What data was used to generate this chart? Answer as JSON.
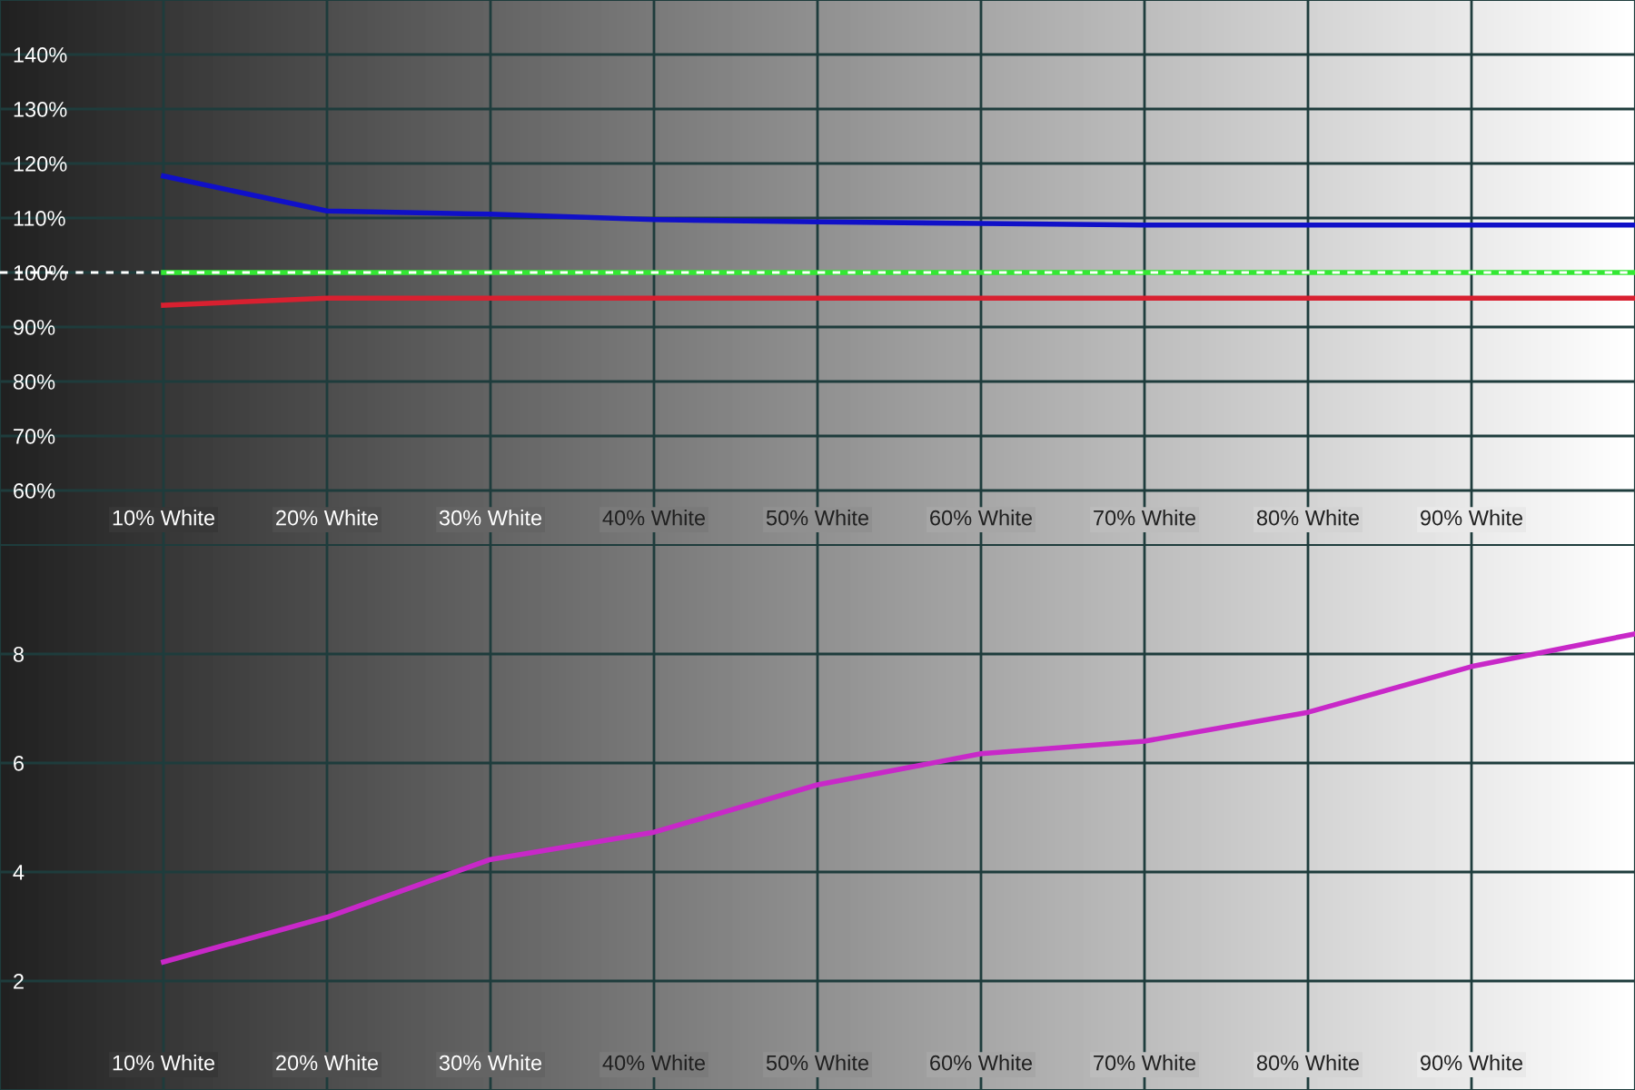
{
  "chart_data": [
    {
      "type": "line",
      "x": [
        10,
        20,
        30,
        40,
        50,
        60,
        70,
        80,
        90,
        100
      ],
      "series": [
        {
          "color": "#1010c8",
          "values": [
            117.7,
            111.3,
            110.7,
            109.7,
            109.3,
            109,
            108.7,
            108.7,
            108.7,
            108.7
          ]
        },
        {
          "color": "#33e833",
          "values": [
            100,
            100,
            100,
            100,
            100,
            100,
            100,
            100,
            100,
            100
          ]
        },
        {
          "color": "#d82030",
          "values": [
            94,
            95.3,
            95.3,
            95.3,
            95.3,
            95.3,
            95.3,
            95.3,
            95.3,
            95.3
          ]
        }
      ],
      "xlim": [
        0,
        100
      ],
      "xticks": [
        {
          "value": 10,
          "label": "10% White"
        },
        {
          "value": 20,
          "label": "20% White"
        },
        {
          "value": 30,
          "label": "30% White"
        },
        {
          "value": 40,
          "label": "40% White"
        },
        {
          "value": 50,
          "label": "50% White"
        },
        {
          "value": 60,
          "label": "60% White"
        },
        {
          "value": 70,
          "label": "70% White"
        },
        {
          "value": 80,
          "label": "80% White"
        },
        {
          "value": 90,
          "label": "90% White"
        }
      ],
      "ylim": [
        50,
        150
      ],
      "yticks": [
        {
          "value": 60,
          "label": "60%"
        },
        {
          "value": 70,
          "label": "70%"
        },
        {
          "value": 80,
          "label": "80%"
        },
        {
          "value": 90,
          "label": "90%"
        },
        {
          "value": 100,
          "label": "100%"
        },
        {
          "value": 110,
          "label": "110%"
        },
        {
          "value": 120,
          "label": "120%"
        },
        {
          "value": 130,
          "label": "130%"
        },
        {
          "value": 140,
          "label": "140%"
        }
      ],
      "grid": true,
      "ref_lines": [
        {
          "axis": "y",
          "value": 100,
          "color": "#ffffff",
          "line_style": "dashed"
        }
      ]
    },
    {
      "type": "line",
      "x": [
        10,
        20,
        30,
        40,
        50,
        60,
        70,
        80,
        90,
        100
      ],
      "series": [
        {
          "color": "#c828c8",
          "values": [
            2.35,
            3.17,
            4.23,
            4.73,
            5.6,
            6.17,
            6.4,
            6.93,
            7.77,
            8.37
          ]
        }
      ],
      "xlim": [
        0,
        100
      ],
      "xticks": [
        {
          "value": 10,
          "label": "10% White"
        },
        {
          "value": 20,
          "label": "20% White"
        },
        {
          "value": 30,
          "label": "30% White"
        },
        {
          "value": 40,
          "label": "40% White"
        },
        {
          "value": 50,
          "label": "50% White"
        },
        {
          "value": 60,
          "label": "60% White"
        },
        {
          "value": 70,
          "label": "70% White"
        },
        {
          "value": 80,
          "label": "80% White"
        },
        {
          "value": 90,
          "label": "90% White"
        }
      ],
      "ylim": [
        0,
        10
      ],
      "yticks": [
        2,
        4,
        6,
        8
      ],
      "grid": true
    }
  ]
}
